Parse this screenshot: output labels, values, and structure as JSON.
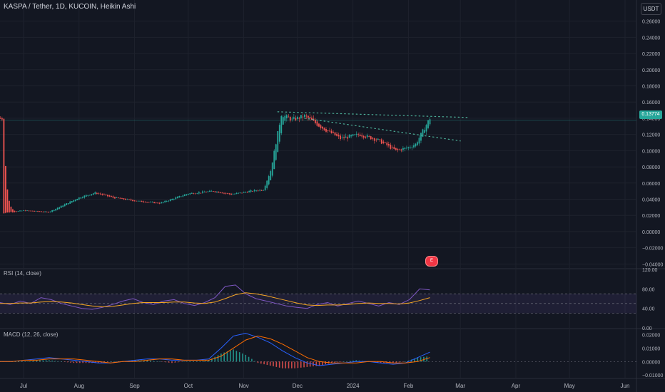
{
  "header": {
    "symbol_title": "KASPA / Tether, 1D, KUCOIN, Heikin Ashi",
    "currency": "USDT",
    "last_price": "0.13774"
  },
  "indicators": {
    "rsi_label": "RSI (14, close)",
    "macd_label": "MACD (12, 26, close)"
  },
  "badge": {
    "label": "E"
  },
  "colors": {
    "background": "#131722",
    "up": "#26a69a",
    "down": "#ef5350",
    "rsi_line": "#7e57c2",
    "rsi_ma": "#f5a623",
    "rsi_band": "#7e57c2",
    "macd_line": "#2962ff",
    "signal_line": "#ff6d00",
    "trendline": "#4caf98",
    "grid": "#1e222d"
  },
  "chart_data": [
    {
      "type": "candlestick",
      "title": "KASPA / Tether, 1D, KUCOIN, Heikin Ashi",
      "pane": "price",
      "yaxis_ticks": [
        "0.26000",
        "0.24000",
        "0.22000",
        "0.20000",
        "0.18000",
        "0.16000",
        "0.14000",
        "0.12000",
        "0.10000",
        "0.08000",
        "0.06000",
        "0.04000",
        "0.02000",
        "0.00000",
        "−0.02000",
        "−0.04000"
      ],
      "ylim": [
        -0.045,
        0.265
      ],
      "x_ticks": [
        "Jul",
        "Aug",
        "Sep",
        "Oct",
        "Nov",
        "Dec",
        "2024",
        "Feb",
        "Mar",
        "Apr",
        "May",
        "Jun"
      ],
      "approx_close_path": [
        {
          "date": "2023-06-20",
          "close": 0.023
        },
        {
          "date": "2023-07-01",
          "close": 0.026
        },
        {
          "date": "2023-07-15",
          "close": 0.024
        },
        {
          "date": "2023-08-01",
          "close": 0.042
        },
        {
          "date": "2023-08-10",
          "close": 0.048
        },
        {
          "date": "2023-08-20",
          "close": 0.042
        },
        {
          "date": "2023-09-01",
          "close": 0.038
        },
        {
          "date": "2023-09-15",
          "close": 0.035
        },
        {
          "date": "2023-10-01",
          "close": 0.047
        },
        {
          "date": "2023-10-15",
          "close": 0.05
        },
        {
          "date": "2023-10-25",
          "close": 0.046
        },
        {
          "date": "2023-11-05",
          "close": 0.05
        },
        {
          "date": "2023-11-12",
          "close": 0.052
        },
        {
          "date": "2023-11-16",
          "close": 0.075
        },
        {
          "date": "2023-11-19",
          "close": 0.11
        },
        {
          "date": "2023-11-22",
          "close": 0.145
        },
        {
          "date": "2023-11-28",
          "close": 0.138
        },
        {
          "date": "2023-12-05",
          "close": 0.143
        },
        {
          "date": "2023-12-15",
          "close": 0.128
        },
        {
          "date": "2023-12-25",
          "close": 0.115
        },
        {
          "date": "2024-01-05",
          "close": 0.12
        },
        {
          "date": "2024-01-15",
          "close": 0.113
        },
        {
          "date": "2024-01-25",
          "close": 0.1
        },
        {
          "date": "2024-02-01",
          "close": 0.104
        },
        {
          "date": "2024-02-05",
          "close": 0.108
        },
        {
          "date": "2024-02-10",
          "close": 0.128
        },
        {
          "date": "2024-02-13",
          "close": 0.14
        }
      ],
      "last_price": 0.13774,
      "trendlines": [
        {
          "style": "dotted",
          "from": {
            "date": "2023-11-20",
            "price": 0.148
          },
          "to": {
            "date": "2024-03-05",
            "price": 0.141
          }
        },
        {
          "style": "dotted",
          "from": {
            "date": "2023-12-05",
            "price": 0.14
          },
          "to": {
            "date": "2024-03-01",
            "price": 0.112
          }
        }
      ]
    },
    {
      "type": "line",
      "title": "RSI (14, close)",
      "pane": "rsi",
      "yaxis_ticks": [
        "120.00",
        "80.00",
        "40.00",
        "0.00"
      ],
      "ylim": [
        0,
        120
      ],
      "band": [
        30,
        70
      ],
      "midline": 50,
      "series": [
        {
          "name": "RSI",
          "values": [
            52,
            48,
            55,
            50,
            62,
            58,
            50,
            45,
            40,
            38,
            42,
            48,
            55,
            60,
            52,
            48,
            55,
            58,
            50,
            46,
            52,
            62,
            85,
            88,
            70,
            60,
            55,
            50,
            45,
            42,
            40,
            48,
            52,
            45,
            50,
            55,
            50,
            45,
            52,
            48,
            58,
            80,
            78
          ]
        },
        {
          "name": "RSI-based MA",
          "values": [
            50,
            50,
            51,
            51,
            53,
            54,
            53,
            51,
            48,
            45,
            43,
            44,
            47,
            50,
            52,
            52,
            52,
            53,
            53,
            51,
            50,
            53,
            60,
            68,
            72,
            70,
            66,
            61,
            56,
            51,
            47,
            46,
            47,
            47,
            48,
            50,
            51,
            50,
            50,
            49,
            51,
            56,
            62
          ]
        }
      ]
    },
    {
      "type": "line",
      "title": "MACD (12, 26, close)",
      "pane": "macd",
      "yaxis_ticks": [
        "0.02000",
        "0.01000",
        "0.00000",
        "−0.01000"
      ],
      "ylim": [
        -0.012,
        0.024
      ],
      "series": [
        {
          "name": "MACD",
          "values": [
            0.0,
            0.0,
            0.001,
            0.002,
            0.003,
            0.002,
            0.001,
            0.0,
            -0.001,
            -0.001,
            0.0,
            0.001,
            0.002,
            0.002,
            0.001,
            0.001,
            0.001,
            0.002,
            0.01,
            0.019,
            0.021,
            0.018,
            0.014,
            0.008,
            0.003,
            -0.001,
            -0.003,
            -0.002,
            -0.001,
            0.0,
            0.0,
            -0.001,
            -0.002,
            -0.001,
            0.003,
            0.007
          ]
        },
        {
          "name": "Signal",
          "values": [
            0.0,
            0.0,
            0.001,
            0.001,
            0.002,
            0.002,
            0.002,
            0.001,
            0.0,
            -0.001,
            0.0,
            0.0,
            0.001,
            0.002,
            0.002,
            0.001,
            0.001,
            0.001,
            0.004,
            0.01,
            0.016,
            0.019,
            0.017,
            0.013,
            0.008,
            0.003,
            0.0,
            -0.001,
            -0.001,
            -0.001,
            0.0,
            0.0,
            -0.001,
            -0.001,
            0.0,
            0.003
          ]
        }
      ]
    }
  ]
}
